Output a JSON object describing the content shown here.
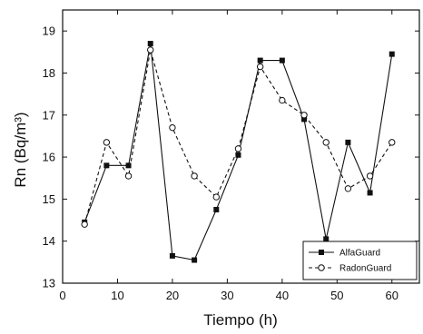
{
  "chart_data": {
    "type": "line",
    "xlabel": "Tiempo (h)",
    "ylabel": "Rn (Bq/m³)",
    "xlim": [
      0,
      65
    ],
    "ylim": [
      13,
      19.5
    ],
    "xticks": [
      "0",
      "10",
      "20",
      "30",
      "40",
      "50",
      "60"
    ],
    "yticks": [
      "13",
      "14",
      "15",
      "16",
      "17",
      "18",
      "19"
    ],
    "grid": false,
    "legend_placement": "bottom-right",
    "series": [
      {
        "name": "AlfaGuard",
        "style": "solid",
        "marker": "filled-square",
        "color": "#111111",
        "x": [
          4,
          8,
          12,
          16,
          20,
          24,
          28,
          32,
          36,
          40,
          44,
          48,
          52,
          56,
          60
        ],
        "y": [
          14.45,
          15.8,
          15.8,
          18.7,
          13.65,
          13.55,
          14.75,
          16.05,
          18.3,
          18.3,
          16.9,
          14.05,
          16.35,
          15.15,
          18.45
        ]
      },
      {
        "name": "RadonGuard",
        "style": "dashed",
        "marker": "open-circle",
        "color": "#111111",
        "x": [
          4,
          8,
          12,
          16,
          20,
          24,
          28,
          32,
          36,
          40,
          44,
          48,
          52,
          56,
          60
        ],
        "y": [
          14.4,
          16.35,
          15.55,
          18.55,
          16.7,
          15.55,
          15.05,
          16.2,
          18.15,
          17.35,
          17.0,
          16.35,
          15.25,
          15.55,
          16.35
        ]
      }
    ]
  }
}
